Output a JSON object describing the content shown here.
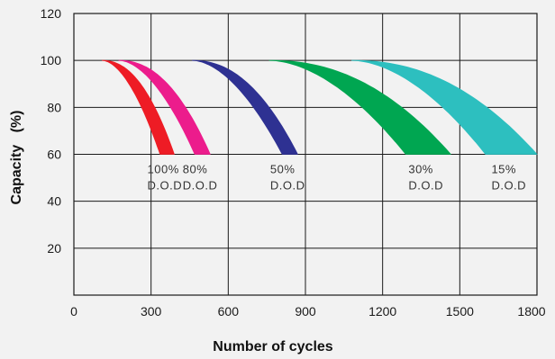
{
  "chart_data": {
    "type": "area",
    "xlabel": "Number of cycles",
    "ylabel": "Capacity   (%)",
    "xlim": [
      0,
      1800
    ],
    "ylim": [
      0,
      120
    ],
    "x_ticks": [
      "0",
      "300",
      "600",
      "900",
      "1200",
      "1500",
      "1800"
    ],
    "y_ticks": [
      "20",
      "40",
      "60",
      "80",
      "100",
      "120"
    ],
    "grid": true,
    "series": [
      {
        "name": "100% D.O.D",
        "label_line1": "100%",
        "label_line2": "D.O.D",
        "color": "#ee1c25",
        "start_cycles": 110,
        "end_cycles_at_60_low": 335,
        "end_cycles_at_60_high": 390
      },
      {
        "name": "80% D.O.D",
        "label_line1": "80%",
        "label_line2": "D.O.D",
        "color": "#ec1c8c",
        "start_cycles": 175,
        "end_cycles_at_60_low": 470,
        "end_cycles_at_60_high": 530
      },
      {
        "name": "50% D.O.D",
        "label_line1": "50%",
        "label_line2": "D.O.D",
        "color": "#2e3192",
        "start_cycles": 460,
        "end_cycles_at_60_low": 810,
        "end_cycles_at_60_high": 870
      },
      {
        "name": "30% D.O.D",
        "label_line1": "30%",
        "label_line2": "D.O.D",
        "color": "#00a651",
        "start_cycles": 760,
        "end_cycles_at_60_low": 1290,
        "end_cycles_at_60_high": 1465
      },
      {
        "name": "15% D.O.D",
        "label_line1": "15%",
        "label_line2": "D.O.D",
        "color": "#2dbfbf",
        "start_cycles": 1080,
        "end_cycles_at_60_low": 1600,
        "end_cycles_at_60_high": 1800
      }
    ]
  }
}
